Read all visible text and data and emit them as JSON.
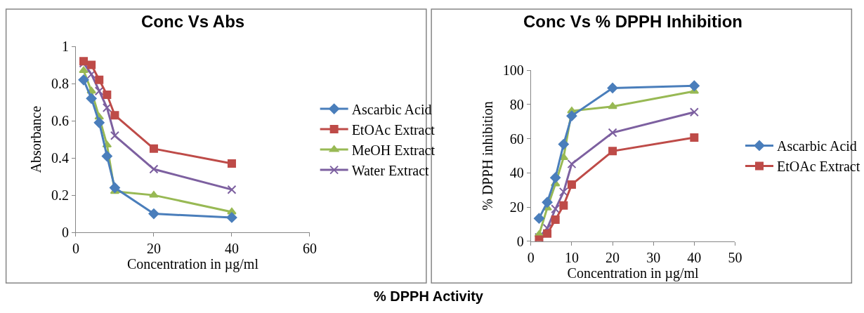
{
  "chart_data": [
    {
      "type": "line",
      "title": "Conc Vs Abs",
      "xlabel": "Concentration in µg/ml",
      "ylabel": "Absorbance",
      "x": [
        2,
        4,
        6,
        8,
        10,
        20,
        40
      ],
      "xlim": [
        0,
        60
      ],
      "xticks": [
        0,
        20,
        40,
        60
      ],
      "ylim": [
        0,
        1
      ],
      "yticks": [
        0,
        0.2,
        0.4,
        0.6,
        0.8,
        1
      ],
      "grid": false,
      "legend": "right",
      "line_style": "solid",
      "series": [
        {
          "name": "Ascarbic Acid",
          "color": "#4a7ebb",
          "marker": "diamond",
          "values": [
            0.82,
            0.72,
            0.59,
            0.41,
            0.24,
            0.1,
            0.08
          ]
        },
        {
          "name": "EtOAc Extract",
          "color": "#be4b48",
          "marker": "square",
          "values": [
            0.92,
            0.9,
            0.82,
            0.74,
            0.63,
            0.45,
            0.37
          ]
        },
        {
          "name": "MeOH Extract",
          "color": "#98b954",
          "marker": "triangle",
          "values": [
            0.87,
            0.76,
            0.62,
            0.47,
            0.22,
            0.2,
            0.11
          ]
        },
        {
          "name": "Water Extract",
          "color": "#7d60a0",
          "marker": "cross",
          "values": [
            0.91,
            0.85,
            0.76,
            0.67,
            0.52,
            0.34,
            0.23
          ]
        }
      ]
    },
    {
      "type": "line",
      "title": "Conc Vs % DPPH Inhibition",
      "xlabel": "Concentration in µg/ml",
      "ylabel": "% DPPH inhibition",
      "x": [
        2,
        4,
        6,
        8,
        10,
        20,
        40
      ],
      "xlim": [
        0,
        50
      ],
      "xticks": [
        0,
        10,
        20,
        30,
        40,
        50
      ],
      "ylim": [
        0,
        100
      ],
      "yticks": [
        0,
        20,
        40,
        60,
        80,
        100
      ],
      "grid": false,
      "legend": "right",
      "line_style": "solid",
      "annotations": [
        "% DPPH Activity"
      ],
      "series": [
        {
          "name": "Ascarbic Acid",
          "color": "#4a7ebb",
          "marker": "diamond",
          "values": [
            13.4,
            22.8,
            37.2,
            56.7,
            73.3,
            89.6,
            90.9
          ]
        },
        {
          "name": "EtOAc Extract",
          "color": "#be4b48",
          "marker": "square",
          "values": [
            1,
            4.5,
            12.7,
            21,
            33.2,
            52.7,
            60.6
          ]
        },
        {
          "color": "#98b954",
          "marker": "triangle",
          "values": [
            4,
            19.5,
            33.6,
            49,
            76.2,
            78.8,
            87.7
          ]
        },
        {
          "color": "#7d60a0",
          "marker": "cross",
          "values": [
            2.3,
            7.6,
            18.9,
            28.9,
            45.2,
            63.5,
            75.5
          ]
        }
      ]
    }
  ]
}
